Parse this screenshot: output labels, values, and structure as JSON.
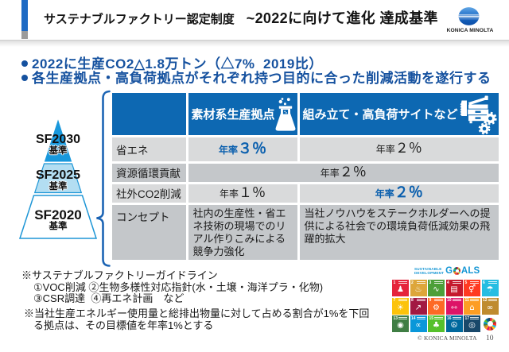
{
  "title": {
    "part1": "サステナブルファクトリー認定制度　",
    "part2": "~2022に向けて進化 達成基準"
  },
  "logo": {
    "brand": "KONICA MINOLTA"
  },
  "bullets": [
    "2022に生産CO2△1.8万トン（△7%  2019比）",
    "各生産拠点・高負荷拠点がそれぞれ持つ目的に合った削減活動を遂行する"
  ],
  "pyramid": {
    "levels": [
      {
        "name": "SF2030",
        "sub": "基準"
      },
      {
        "name": "SF2025",
        "sub": "基準"
      },
      {
        "name": "SF2020",
        "sub": "基準"
      }
    ]
  },
  "table": {
    "columns": [
      {
        "label": "素材系生産拠点",
        "icon": "flask-icon"
      },
      {
        "label": "組み立て・高負荷サイトなど",
        "icon": "factory-machine-icon"
      }
    ],
    "rows": {
      "energy": {
        "label": "省エネ",
        "material_prefix": "年率",
        "material_value": "３％",
        "assembly_prefix": "年率",
        "assembly_value": "２％"
      },
      "resource": {
        "label": "資源循環貢献",
        "merged_prefix": "年率",
        "merged_value": "２％"
      },
      "co2": {
        "label": "社外CO2削減",
        "material_prefix": "年率",
        "material_value": "１％",
        "assembly_prefix": "年率",
        "assembly_value": "２％"
      },
      "concept": {
        "label": "コンセプト",
        "material_text": "社内の生産性・省エネ技術の現場でのリアル作りこみによる競争力強化",
        "assembly_text": "当社ノウハウをステークホルダーへの提供による社会での環境負荷低減効果の飛躍的拡大"
      }
    }
  },
  "notes": {
    "guideline_title": "※サステナブルファクトリーガイドライン",
    "guideline_line1": "①VOC削減 ②生物多様性対応指針(水・土壌・海洋プラ・化物)",
    "guideline_line2": "③CSR調達  ④再エネ計画　など",
    "threshold_line1": "※当社生産エネルギー使用量と総排出物量に対して占める割合が1%を下回",
    "threshold_line2": "る拠点は、その目標値を年率1%とする"
  },
  "sdg": {
    "logo_line1": "SUSTAINABLE",
    "logo_line2": "DEVELOPMENT",
    "goals_g": "G",
    "goals_als": "ALS",
    "tiles": [
      {
        "n": "1",
        "color": "#e5243b",
        "glyph": "♟"
      },
      {
        "n": "2",
        "color": "#dda63a",
        "glyph": "♨"
      },
      {
        "n": "3",
        "color": "#4c9f38",
        "glyph": "∿"
      },
      {
        "n": "4",
        "color": "#c5192d",
        "glyph": "▤"
      },
      {
        "n": "5",
        "color": "#ff3a21",
        "glyph": "⚥"
      },
      {
        "n": "6",
        "color": "#26bde2",
        "glyph": "☂"
      },
      {
        "n": "7",
        "color": "#fcc30b",
        "glyph": "☀"
      },
      {
        "n": "8",
        "color": "#a21942",
        "glyph": "↗"
      },
      {
        "n": "9",
        "color": "#fd6925",
        "glyph": "⚙"
      },
      {
        "n": "10",
        "color": "#dd1367",
        "glyph": "⇿"
      },
      {
        "n": "11",
        "color": "#fd9d24",
        "glyph": "⌂"
      },
      {
        "n": "12",
        "color": "#bf8b2e",
        "glyph": "∞"
      },
      {
        "n": "13",
        "color": "#3f7e44",
        "glyph": "◉"
      },
      {
        "n": "14",
        "color": "#0a97d9",
        "glyph": "∝"
      },
      {
        "n": "15",
        "color": "#56c02b",
        "glyph": "♣"
      },
      {
        "n": "16",
        "color": "#00689d",
        "glyph": "☮"
      },
      {
        "n": "17",
        "color": "#19486a",
        "glyph": "◎"
      }
    ]
  },
  "footer": {
    "copyright": "© KONICA MINOLTA",
    "page": "10"
  },
  "theme": {
    "accent_blue": "#1e6ac4",
    "table_header_blue": "#0d68b2",
    "bullet_text_blue": "#15519f",
    "highlight_value_blue": "#0a5fae",
    "row_light_gray": "#d9dadb",
    "row_dark_gray": "#c4c7ca",
    "pyramid_top_blue": "#1898dc",
    "pyramid_mid_blue": "#b3def2",
    "pyramid_outline_blue": "#1e96d6",
    "brace_blue": "#1c64b4",
    "sdg_logo_blue": "#1496d4"
  }
}
